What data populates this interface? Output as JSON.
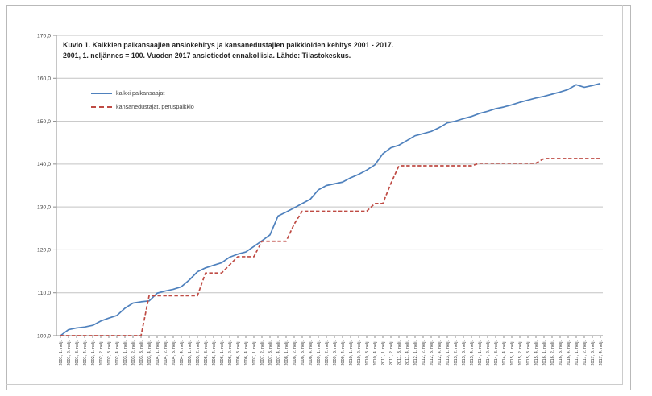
{
  "page": {
    "background": "#ffffff",
    "border_color": "#b9b9b9"
  },
  "chart_data": {
    "type": "line",
    "title": "Kuvio 1. Kaikkien palkansaajien ansiokehitys ja kansanedustajien palkkioiden kehitys 2001 - 2017.",
    "subtitle": "2001, 1. neljännes = 100. Vuoden 2017 ansiotiedot ennakollisia. Lähde: Tilastokeskus.",
    "ylim": [
      100,
      170
    ],
    "ytick_step": 10,
    "grid": true,
    "legend_position": "top-left-inside",
    "y_tick_labels": [
      "100,0",
      "110,0",
      "120,0",
      "130,0",
      "140,0",
      "150,0",
      "160,0",
      "170,0"
    ],
    "x": [
      "2001, 1. nelj.",
      "2001, 2. nelj.",
      "2001, 3. nelj.",
      "2001, 4. nelj.",
      "2002, 1. nelj.",
      "2002, 2. nelj.",
      "2002, 3. nelj.",
      "2002, 4. nelj.",
      "2003, 1. nelj.",
      "2003, 2. nelj.",
      "2003, 3. nelj.",
      "2003, 4. nelj.",
      "2004, 1. nelj.",
      "2004, 2. nelj.",
      "2004, 3. nelj.",
      "2004, 4. nelj.",
      "2005, 1. nelj.",
      "2005, 2. nelj.",
      "2005, 3. nelj.",
      "2005, 4. nelj.",
      "2006, 1. nelj.",
      "2006, 2. nelj.",
      "2006, 3. nelj.",
      "2006, 4. nelj.",
      "2007, 1. nelj.",
      "2007, 2. nelj.",
      "2007, 3. nelj.",
      "2007, 4. nelj.",
      "2008, 1. nelj.",
      "2008, 2. nelj.",
      "2008, 3. nelj.",
      "2008, 4. nelj.",
      "2009, 1. nelj.",
      "2009, 2. nelj.",
      "2009, 3. nelj.",
      "2009, 4. nelj.",
      "2010, 1. nelj.",
      "2010, 2. nelj.",
      "2010, 3. nelj.",
      "2010, 4. nelj.",
      "2011, 1. nelj.",
      "2011, 2. nelj.",
      "2011, 3. nelj.",
      "2011, 4. nelj.",
      "2012, 1. nelj.",
      "2012, 2. nelj.",
      "2012, 3. nelj.",
      "2012, 4. nelj.",
      "2013, 1. nelj.",
      "2013, 2. nelj.",
      "2013, 3. nelj.",
      "2013, 4. nelj.",
      "2014, 1. nelj.",
      "2014, 2. nelj.",
      "2014, 3. nelj.",
      "2014, 4. nelj.",
      "2015, 1. nelj.",
      "2015, 2. nelj.",
      "2015, 3. nelj.",
      "2015, 4. nelj.",
      "2016, 1. nelj.",
      "2016, 2. nelj.",
      "2016, 3. nelj.",
      "2016, 4. nelj.",
      "2017, 1. nelj.",
      "2017, 2. nelj.",
      "2017, 3. nelj.",
      "2017, 4. nelj."
    ],
    "series": [
      {
        "name": "kaikki palkansaajat",
        "color": "#4f81bd",
        "style": "solid",
        "values": [
          100.0,
          101.4,
          101.8,
          102.0,
          102.4,
          103.4,
          104.1,
          104.7,
          106.4,
          107.6,
          107.9,
          108.1,
          109.9,
          110.4,
          110.8,
          111.4,
          113.0,
          114.9,
          115.8,
          116.4,
          117.0,
          118.3,
          119.0,
          119.5,
          120.8,
          122.1,
          123.5,
          127.9,
          128.8,
          129.8,
          130.8,
          131.8,
          134.0,
          135.0,
          135.4,
          135.8,
          136.8,
          137.6,
          138.6,
          139.8,
          142.4,
          143.8,
          144.4,
          145.5,
          146.6,
          147.1,
          147.6,
          148.5,
          149.6,
          150.0,
          150.6,
          151.1,
          151.8,
          152.3,
          152.9,
          153.3,
          153.8,
          154.4,
          154.9,
          155.4,
          155.8,
          156.3,
          156.8,
          157.4,
          158.5,
          157.9,
          158.3,
          158.8
        ]
      },
      {
        "name": "kansanedustajat, peruspalkkio",
        "color": "#bf4b44",
        "style": "dashed",
        "values": [
          100.0,
          100.0,
          100.0,
          100.0,
          100.0,
          100.0,
          100.0,
          100.0,
          100.0,
          100.0,
          100.0,
          109.3,
          109.3,
          109.3,
          109.3,
          109.3,
          109.3,
          109.3,
          114.6,
          114.6,
          114.6,
          116.5,
          118.4,
          118.4,
          118.4,
          122.0,
          122.0,
          122.0,
          122.0,
          126.0,
          129.0,
          129.0,
          129.0,
          129.0,
          129.0,
          129.0,
          129.0,
          129.0,
          129.0,
          130.8,
          130.8,
          135.5,
          139.6,
          139.6,
          139.6,
          139.6,
          139.6,
          139.6,
          139.6,
          139.6,
          139.6,
          139.6,
          140.2,
          140.2,
          140.2,
          140.2,
          140.2,
          140.2,
          140.2,
          140.2,
          141.3,
          141.3,
          141.3,
          141.3,
          141.3,
          141.3,
          141.3,
          141.3
        ]
      }
    ]
  }
}
